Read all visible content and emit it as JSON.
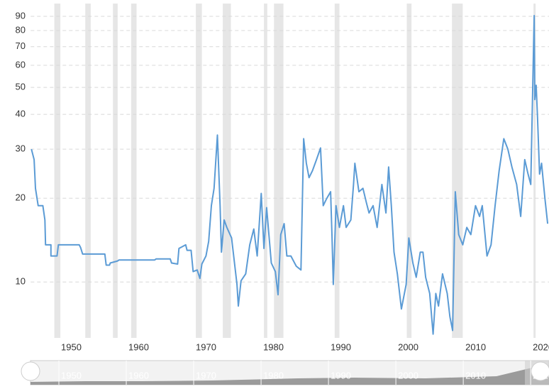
{
  "chart_data": {
    "type": "line",
    "log_scale": true,
    "grid": true,
    "xlim": [
      1945.4,
      2022.3
    ],
    "ylim": [
      6.3,
      100
    ],
    "xticks": [
      1950,
      1960,
      1970,
      1980,
      1990,
      2000,
      2010,
      2020
    ],
    "yticks": [
      10,
      20,
      30,
      40,
      50,
      60,
      70,
      80,
      90
    ],
    "shaded_periods": [
      [
        1948.9,
        1949.8
      ],
      [
        1953.5,
        1954.3
      ],
      [
        1957.6,
        1958.3
      ],
      [
        1960.3,
        1961.1
      ],
      [
        1969.9,
        1970.8
      ],
      [
        1973.9,
        1975.1
      ],
      [
        1980.0,
        1980.5
      ],
      [
        1981.5,
        1982.9
      ],
      [
        1990.5,
        1991.2
      ],
      [
        2001.2,
        2001.9
      ],
      [
        2007.9,
        2009.5
      ],
      [
        2020.0,
        2020.3
      ]
    ],
    "shade_color": "#e6e6e6",
    "series": [
      {
        "color": "#5b9bd5",
        "x": [
          1945.5,
          1945.9,
          1946.1,
          1946.5,
          1947.2,
          1947.5,
          1947.6,
          1948.4,
          1948.4,
          1949.3,
          1949.5,
          1952.6,
          1952.8,
          1953.1,
          1956.4,
          1956.6,
          1957.1,
          1957.2,
          1958.3,
          1958.5,
          1963.8,
          1964.0,
          1966.1,
          1966.3,
          1967.2,
          1967.4,
          1968.4,
          1968.6,
          1969.2,
          1969.5,
          1970.1,
          1970.5,
          1970.8,
          1971.4,
          1971.8,
          1972.2,
          1972.6,
          1973.1,
          1973.5,
          1973.7,
          1974.1,
          1974.5,
          1975.2,
          1976.0,
          1976.2,
          1976.6,
          1977.3,
          1977.9,
          1978.5,
          1979.0,
          1979.6,
          1980.0,
          1980.4,
          1981.1,
          1981.7,
          1982.1,
          1982.5,
          1983.0,
          1983.4,
          1984.0,
          1984.8,
          1985.5,
          1985.9,
          1986.3,
          1986.7,
          1987.2,
          1987.8,
          1988.4,
          1988.8,
          1989.3,
          1989.9,
          1990.1,
          1990.3,
          1990.7,
          1991.2,
          1991.8,
          1992.2,
          1992.9,
          1993.3,
          1993.5,
          1994.1,
          1994.7,
          1995.2,
          1995.6,
          1996.2,
          1996.8,
          1997.5,
          1998.1,
          1998.5,
          1998.9,
          1999.3,
          1999.8,
          2000.4,
          2001.1,
          2001.5,
          2002.1,
          2002.6,
          2003.2,
          2003.6,
          2004.0,
          2004.6,
          2005.1,
          2005.5,
          2005.9,
          2006.5,
          2007.2,
          2007.6,
          2008.0,
          2008.4,
          2008.9,
          2009.5,
          2010.1,
          2010.7,
          2011.4,
          2012.0,
          2012.4,
          2013.1,
          2013.7,
          2014.3,
          2014.9,
          2015.6,
          2016.2,
          2016.8,
          2017.5,
          2018.1,
          2018.7,
          2019.2,
          2019.6,
          2020.1,
          2020.2,
          2020.4,
          2020.6,
          2020.9,
          2021.2,
          2021.7,
          2022.1
        ],
        "values": [
          30,
          27.5,
          21.7,
          18.8,
          18.8,
          16.7,
          13.6,
          13.6,
          12.4,
          12.4,
          13.6,
          13.6,
          13.3,
          12.6,
          12.6,
          11.5,
          11.5,
          11.7,
          11.9,
          12.0,
          12.0,
          12.1,
          12.1,
          11.7,
          11.6,
          13.2,
          13.6,
          13.0,
          13.0,
          10.9,
          11.05,
          10.3,
          11.6,
          12.4,
          14.0,
          18.8,
          21.7,
          33.7,
          18.8,
          12.8,
          16.7,
          15.7,
          14.4,
          9.8,
          8.2,
          10.1,
          10.7,
          13.6,
          15.5,
          12.4,
          20.8,
          13.2,
          18.5,
          11.7,
          10.9,
          9.0,
          14.8,
          16.2,
          12.4,
          12.4,
          11.4,
          11.05,
          32.7,
          26.7,
          23.7,
          25.1,
          27.5,
          30.3,
          18.8,
          19.9,
          21.1,
          14.8,
          9.8,
          18.8,
          15.7,
          18.8,
          15.7,
          16.7,
          22.4,
          26.7,
          21.1,
          21.7,
          19.3,
          17.7,
          18.8,
          15.7,
          22.4,
          17.7,
          25.9,
          18.8,
          12.8,
          10.7,
          8.0,
          9.8,
          14.4,
          11.7,
          10.4,
          12.8,
          12.8,
          10.4,
          9.1,
          6.5,
          9.1,
          8.2,
          10.7,
          9.1,
          7.5,
          6.7,
          21.1,
          14.8,
          13.6,
          15.7,
          14.8,
          18.8,
          17.2,
          18.8,
          12.4,
          13.6,
          18.8,
          25.1,
          32.7,
          30.0,
          25.9,
          22.4,
          17.2,
          27.5,
          24.4,
          22.4,
          90.5,
          45.2,
          50.9,
          39.1,
          24.4,
          26.7,
          19.9,
          16.2
        ]
      }
    ]
  }
}
